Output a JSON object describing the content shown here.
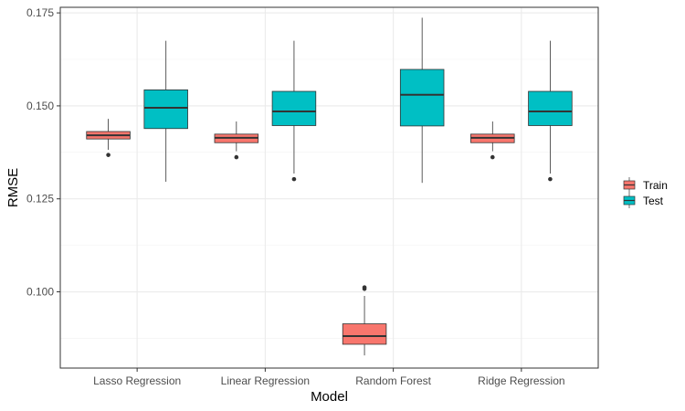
{
  "chart_data": {
    "type": "box",
    "title": "",
    "xlabel": "Model",
    "ylabel": "RMSE",
    "categories": [
      "Lasso Regression",
      "Linear Regression",
      "Random Forest",
      "Ridge Regression"
    ],
    "ylim": [
      0.0795,
      0.1765
    ],
    "y_ticks": [
      0.1,
      0.125,
      0.15,
      0.175
    ],
    "y_tick_labels": [
      "0.100",
      "0.125",
      "0.150",
      "0.175"
    ],
    "grid": true,
    "legend_position": "right",
    "series": [
      {
        "name": "Train",
        "color": "#F8766D",
        "boxes": [
          {
            "whisker_low": 0.1382,
            "q1": 0.1411,
            "median": 0.1421,
            "q3": 0.1431,
            "whisker_high": 0.1465,
            "outliers": [
              0.1368
            ]
          },
          {
            "whisker_low": 0.1378,
            "q1": 0.1401,
            "median": 0.1414,
            "q3": 0.1424,
            "whisker_high": 0.1458,
            "outliers": [
              0.1362
            ]
          },
          {
            "whisker_low": 0.0829,
            "q1": 0.0859,
            "median": 0.0881,
            "q3": 0.0914,
            "whisker_high": 0.0989,
            "outliers": [
              0.1008,
              0.1012
            ]
          },
          {
            "whisker_low": 0.1378,
            "q1": 0.1401,
            "median": 0.1414,
            "q3": 0.1424,
            "whisker_high": 0.1458,
            "outliers": [
              0.1362
            ]
          }
        ]
      },
      {
        "name": "Test",
        "color": "#00BFC4",
        "boxes": [
          {
            "whisker_low": 0.1296,
            "q1": 0.1439,
            "median": 0.1495,
            "q3": 0.1543,
            "whisker_high": 0.1675,
            "outliers": []
          },
          {
            "whisker_low": 0.1318,
            "q1": 0.1447,
            "median": 0.1485,
            "q3": 0.1539,
            "whisker_high": 0.1675,
            "outliers": [
              0.1303
            ]
          },
          {
            "whisker_low": 0.1293,
            "q1": 0.1446,
            "median": 0.153,
            "q3": 0.1598,
            "whisker_high": 0.1737,
            "outliers": []
          },
          {
            "whisker_low": 0.1318,
            "q1": 0.1447,
            "median": 0.1485,
            "q3": 0.1539,
            "whisker_high": 0.1675,
            "outliers": [
              0.1303
            ]
          }
        ]
      }
    ]
  }
}
